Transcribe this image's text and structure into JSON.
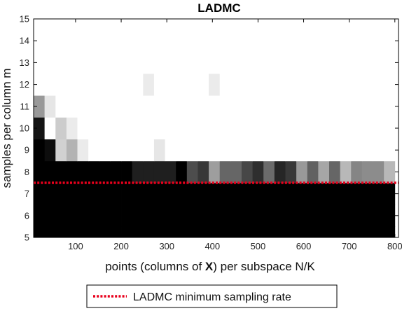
{
  "chart_data": {
    "type": "heatmap",
    "title": "LADMC",
    "xlabel_parts": [
      {
        "text": "points (columns of ",
        "bold": false
      },
      {
        "text": "X",
        "bold": true
      },
      {
        "text": ") per subspace N/K",
        "bold": false
      }
    ],
    "ylabel": "samples per column m",
    "xlim": [
      8,
      808
    ],
    "ylim": [
      5,
      15
    ],
    "x_ticks": [
      100,
      200,
      300,
      400,
      500,
      600,
      700,
      800
    ],
    "y_ticks": [
      5,
      6,
      7,
      8,
      9,
      10,
      11,
      12,
      13,
      14,
      15
    ],
    "colormap": "gray (black = 0, white = 1)",
    "cell_width": 24,
    "cell_height": 1,
    "x_centers": [
      20,
      44,
      68,
      92,
      116,
      140,
      164,
      188,
      212,
      236,
      260,
      284,
      308,
      332,
      356,
      380,
      404,
      428,
      452,
      476,
      500,
      524,
      548,
      572,
      596,
      620,
      644,
      668,
      692,
      716,
      740,
      764,
      788
    ],
    "y_centers": [
      5,
      6,
      7,
      8,
      9,
      10,
      11,
      12,
      13,
      14,
      15
    ],
    "cells": [
      {
        "x": 20,
        "y": 8,
        "value": 0.0
      },
      {
        "x": 44,
        "y": 8,
        "value": 0.0
      },
      {
        "x": 68,
        "y": 8,
        "value": 0.0
      },
      {
        "x": 92,
        "y": 8,
        "value": 0.0
      },
      {
        "x": 116,
        "y": 8,
        "value": 0.0
      },
      {
        "x": 140,
        "y": 8,
        "value": 0.0
      },
      {
        "x": 164,
        "y": 8,
        "value": 0.0
      },
      {
        "x": 188,
        "y": 8,
        "value": 0.0
      },
      {
        "x": 212,
        "y": 8,
        "value": 0.0
      },
      {
        "x": 236,
        "y": 8,
        "value": 0.12
      },
      {
        "x": 260,
        "y": 8,
        "value": 0.12
      },
      {
        "x": 284,
        "y": 8,
        "value": 0.12
      },
      {
        "x": 308,
        "y": 8,
        "value": 0.12
      },
      {
        "x": 332,
        "y": 8,
        "value": 0.0
      },
      {
        "x": 356,
        "y": 8,
        "value": 0.3
      },
      {
        "x": 380,
        "y": 8,
        "value": 0.22
      },
      {
        "x": 404,
        "y": 8,
        "value": 0.62
      },
      {
        "x": 428,
        "y": 8,
        "value": 0.4
      },
      {
        "x": 452,
        "y": 8,
        "value": 0.4
      },
      {
        "x": 476,
        "y": 8,
        "value": 0.28
      },
      {
        "x": 500,
        "y": 8,
        "value": 0.18
      },
      {
        "x": 524,
        "y": 8,
        "value": 0.42
      },
      {
        "x": 548,
        "y": 8,
        "value": 0.15
      },
      {
        "x": 572,
        "y": 8,
        "value": 0.22
      },
      {
        "x": 596,
        "y": 8,
        "value": 0.6
      },
      {
        "x": 620,
        "y": 8,
        "value": 0.38
      },
      {
        "x": 644,
        "y": 8,
        "value": 0.65
      },
      {
        "x": 668,
        "y": 8,
        "value": 0.4
      },
      {
        "x": 692,
        "y": 8,
        "value": 0.72
      },
      {
        "x": 716,
        "y": 8,
        "value": 0.52
      },
      {
        "x": 740,
        "y": 8,
        "value": 0.55
      },
      {
        "x": 764,
        "y": 8,
        "value": 0.55
      },
      {
        "x": 788,
        "y": 8,
        "value": 0.72
      },
      {
        "x": 20,
        "y": 9,
        "value": 0.0
      },
      {
        "x": 44,
        "y": 9,
        "value": 0.05
      },
      {
        "x": 68,
        "y": 9,
        "value": 0.82
      },
      {
        "x": 92,
        "y": 9,
        "value": 0.7
      },
      {
        "x": 116,
        "y": 9,
        "value": 0.92
      },
      {
        "x": 284,
        "y": 9,
        "value": 0.9
      },
      {
        "x": 20,
        "y": 10,
        "value": 0.08
      },
      {
        "x": 44,
        "y": 10,
        "value": 1.0
      },
      {
        "x": 68,
        "y": 10,
        "value": 0.8
      },
      {
        "x": 92,
        "y": 10,
        "value": 0.92
      },
      {
        "x": 20,
        "y": 11,
        "value": 0.6
      },
      {
        "x": 44,
        "y": 11,
        "value": 0.9
      },
      {
        "x": 260,
        "y": 12,
        "value": 0.92
      },
      {
        "x": 404,
        "y": 12,
        "value": 0.92
      }
    ],
    "default_value_below_8": 0.0,
    "default_value_above_8": 1.0,
    "threshold_line": {
      "y": 7.5,
      "color": "#e8001c",
      "style": "dotted"
    },
    "legend": {
      "label": "LADMC minimum sampling rate",
      "placement": "below"
    }
  }
}
